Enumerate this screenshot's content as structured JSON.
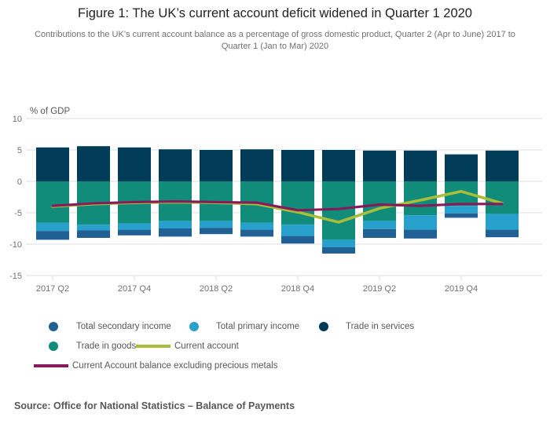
{
  "title": "Figure 1: The UK’s current account deficit widened in Quarter 1 2020",
  "subtitle": "Contributions to the UK’s current account balance as a percentage of gross domestic product, Quarter 2 (Apr to June) 2017 to Quarter 1 (Jan to Mar) 2020",
  "source": "Source: Office for National Statistics – Balance of Payments",
  "chart_data": {
    "type": "bar",
    "subtype": "stacked-bars-with-line-overlay",
    "title": "Figure 1: The UK’s current account deficit widened in Quarter 1 2020",
    "ylabel": "% of GDP",
    "xlabel": "",
    "ylim": [
      -15,
      10
    ],
    "yticks": [
      10,
      5,
      0,
      -5,
      -10,
      -15
    ],
    "grid": true,
    "legend_position": "bottom",
    "categories": [
      "2017 Q2",
      "2017 Q3",
      "2017 Q4",
      "2018 Q1",
      "2018 Q2",
      "2018 Q3",
      "2018 Q4",
      "2019 Q1",
      "2019 Q2",
      "2019 Q3",
      "2019 Q4",
      "2020 Q1"
    ],
    "x_tick_labels": [
      "2017 Q2",
      "2017 Q4",
      "2018 Q2",
      "2018 Q4",
      "2019 Q2",
      "2019 Q4"
    ],
    "x_tick_every": 2,
    "series": [
      {
        "name": "Trade in services",
        "chart_type": "bar",
        "color": "#003C57",
        "values": [
          5.4,
          5.6,
          5.4,
          5.1,
          5.0,
          5.1,
          5.0,
          5.0,
          4.9,
          4.9,
          4.3,
          4.9
        ]
      },
      {
        "name": "Trade in goods",
        "chart_type": "bar",
        "color": "#118C7B",
        "values": [
          -6.6,
          -6.9,
          -6.7,
          -6.3,
          -6.3,
          -6.6,
          -6.9,
          -9.3,
          -6.3,
          -5.4,
          -3.9,
          -5.2
        ]
      },
      {
        "name": "Total primary income",
        "chart_type": "bar",
        "color": "#27A0CC",
        "values": [
          -1.3,
          -0.9,
          -1.0,
          -1.2,
          -1.1,
          -1.1,
          -1.8,
          -1.2,
          -1.3,
          -2.3,
          -1.2,
          -2.5
        ]
      },
      {
        "name": "Total secondary income",
        "chart_type": "bar",
        "color": "#206095",
        "values": [
          -1.4,
          -1.2,
          -0.9,
          -1.3,
          -1.0,
          -1.1,
          -1.2,
          -1.0,
          -1.4,
          -1.4,
          -0.7,
          -1.2
        ]
      },
      {
        "name": "Current account",
        "chart_type": "line",
        "color": "#A8BD3A",
        "values": [
          -4.0,
          -3.6,
          -3.4,
          -3.3,
          -3.4,
          -3.6,
          -4.9,
          -6.5,
          -4.3,
          -3.0,
          -1.6,
          -3.5
        ]
      },
      {
        "name": "Current Account balance excluding precious metals",
        "chart_type": "line",
        "color": "#871A5B",
        "values": [
          -3.9,
          -3.5,
          -3.3,
          -3.2,
          -3.3,
          -3.4,
          -4.6,
          -4.4,
          -3.7,
          -3.9,
          -3.6,
          -3.6
        ]
      }
    ]
  },
  "legend": {
    "items": [
      {
        "label": "Total secondary income",
        "swatch": "dot",
        "color": "#206095"
      },
      {
        "label": "Total primary income",
        "swatch": "dot",
        "color": "#27A0CC"
      },
      {
        "label": "Trade in services",
        "swatch": "dot",
        "color": "#003C57"
      },
      {
        "label": "Trade in goods",
        "swatch": "dot",
        "color": "#118C7B"
      },
      {
        "label": "Current account",
        "swatch": "line",
        "color": "#A8BD3A"
      },
      {
        "label": "Current Account balance excluding precious metals",
        "swatch": "line",
        "color": "#871A5B"
      }
    ]
  },
  "colors": {
    "title_text": "#222222",
    "axis_text": "#707071",
    "legend_text": "#58585A",
    "source_text": "#58585A",
    "gridline": "#DBDDE0",
    "background": "#FFFFFF"
  }
}
